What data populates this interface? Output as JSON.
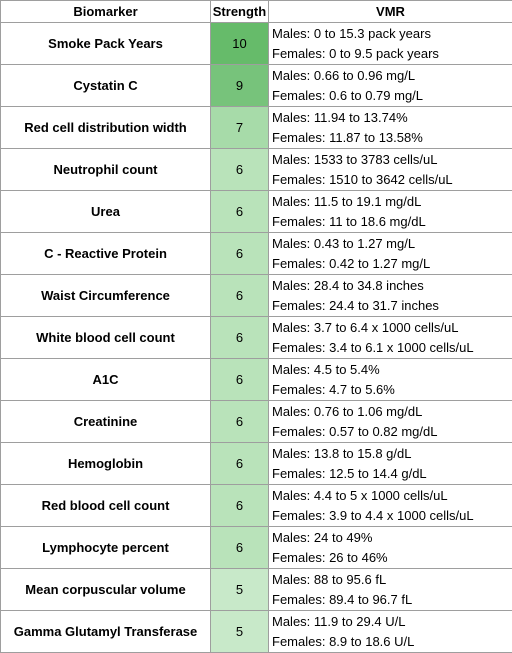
{
  "headers": {
    "biomarker": "Biomarker",
    "strength": "Strength",
    "vmr": "VMR"
  },
  "strength_colors": {
    "10": "#66bb6a",
    "9": "#77c37b",
    "7": "#a7dba9",
    "6": "#b9e3ba",
    "5": "#c8e9c9"
  },
  "rows": [
    {
      "biomarker": "Smoke Pack Years",
      "strength": "10",
      "males": "Males: 0 to 15.3 pack years",
      "females": "Females: 0 to 9.5 pack years"
    },
    {
      "biomarker": "Cystatin C",
      "strength": "9",
      "males": "Males: 0.66 to 0.96 mg/L",
      "females": "Females: 0.6 to 0.79 mg/L"
    },
    {
      "biomarker": "Red cell distribution width",
      "strength": "7",
      "males": "Males: 11.94 to 13.74%",
      "females": "Females: 11.87 to 13.58%"
    },
    {
      "biomarker": "Neutrophil count",
      "strength": "6",
      "males": "Males: 1533 to 3783 cells/uL",
      "females": "Females: 1510 to 3642 cells/uL"
    },
    {
      "biomarker": "Urea",
      "strength": "6",
      "males": "Males: 11.5 to 19.1 mg/dL",
      "females": "Females: 11 to 18.6 mg/dL"
    },
    {
      "biomarker": "C - Reactive Protein",
      "strength": "6",
      "males": "Males: 0.43 to 1.27 mg/L",
      "females": "Females: 0.42 to 1.27 mg/L"
    },
    {
      "biomarker": "Waist Circumference",
      "strength": "6",
      "males": "Males: 28.4 to 34.8 inches",
      "females": "Females: 24.4 to 31.7 inches"
    },
    {
      "biomarker": "White blood cell count",
      "strength": "6",
      "males": "Males: 3.7 to 6.4 x 1000 cells/uL",
      "females": "Females: 3.4 to 6.1 x 1000 cells/uL"
    },
    {
      "biomarker": "A1C",
      "strength": "6",
      "males": "Males: 4.5 to 5.4%",
      "females": "Females: 4.7 to 5.6%"
    },
    {
      "biomarker": "Creatinine",
      "strength": "6",
      "males": "Males: 0.76 to 1.06 mg/dL",
      "females": "Females: 0.57 to 0.82 mg/dL"
    },
    {
      "biomarker": "Hemoglobin",
      "strength": "6",
      "males": "Males: 13.8 to 15.8 g/dL",
      "females": "Females: 12.5 to 14.4 g/dL"
    },
    {
      "biomarker": "Red blood cell count",
      "strength": "6",
      "males": "Males: 4.4 to 5 x 1000 cells/uL",
      "females": "Females: 3.9 to 4.4 x 1000 cells/uL"
    },
    {
      "biomarker": "Lymphocyte percent",
      "strength": "6",
      "males": "Males: 24 to 49%",
      "females": "Females: 26 to 46%"
    },
    {
      "biomarker": "Mean corpuscular volume",
      "strength": "5",
      "males": "Males: 88 to 95.6 fL",
      "females": "Females: 89.4 to 96.7 fL"
    },
    {
      "biomarker": "Gamma Glutamyl Transferase",
      "strength": "5",
      "males": "Males: 11.9 to 29.4 U/L",
      "females": "Females: 8.9 to 18.6 U/L"
    }
  ]
}
